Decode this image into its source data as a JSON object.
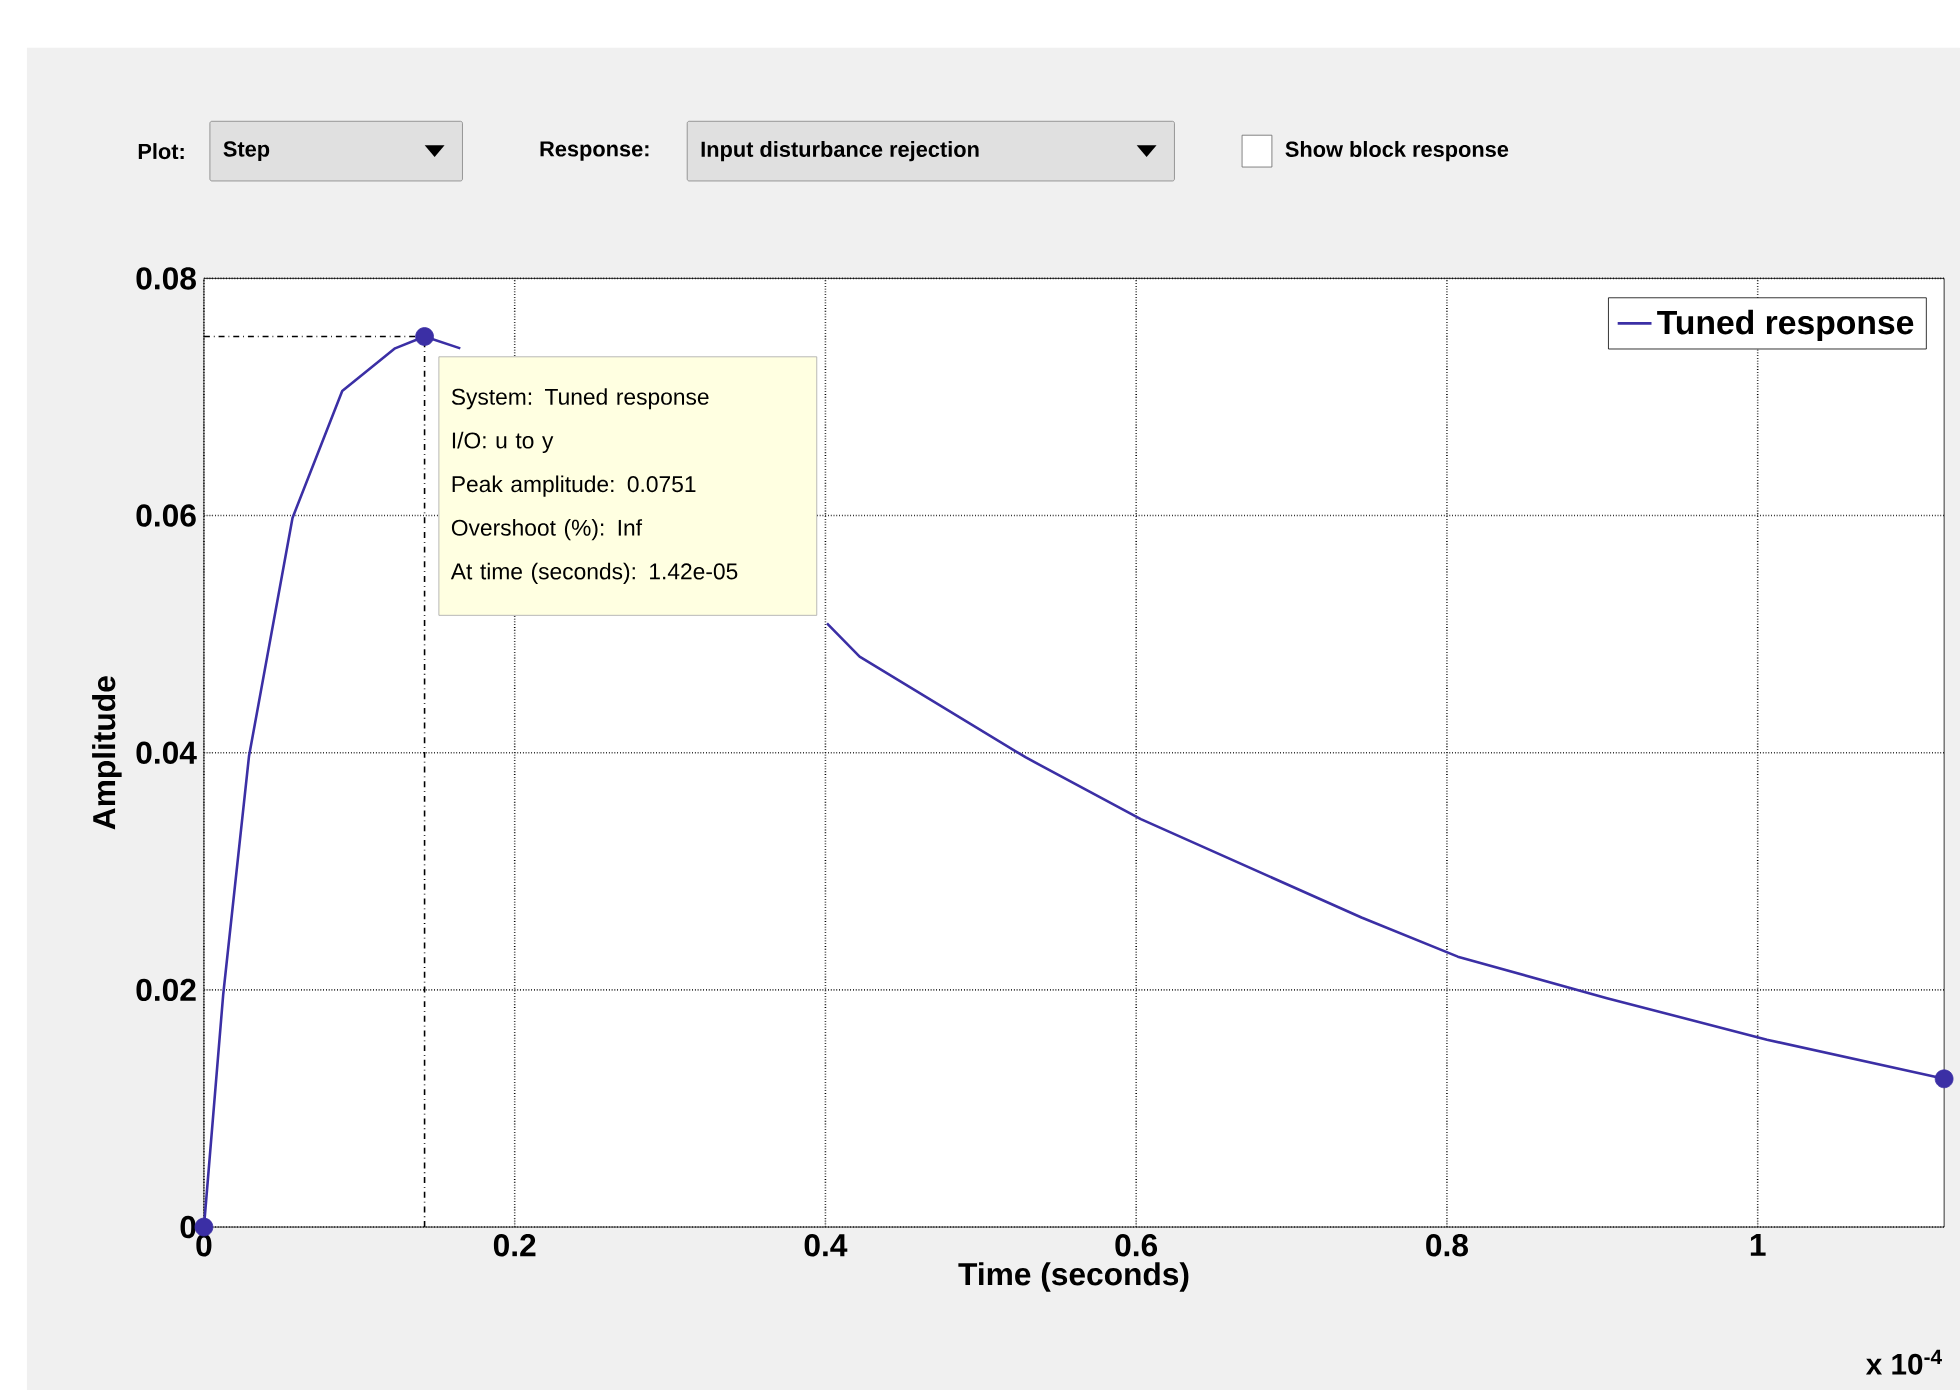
{
  "chart_data": {
    "type": "line",
    "xlabel": "Time (seconds)",
    "ylabel": "Amplitude",
    "x": [
      0,
      0.0124,
      0.029,
      0.057,
      0.089,
      0.123,
      0.142,
      0.165,
      0.28,
      0.387,
      0.401,
      0.422,
      0.529,
      0.603,
      0.745,
      0.807,
      0.903,
      1.006,
      1.12
    ],
    "series": [
      {
        "name": "Tuned response",
        "color": "#3b2fa5",
        "values": [
          0,
          0.0196,
          0.0397,
          0.0598,
          0.0705,
          0.0741,
          0.0751,
          0.0741,
          null,
          null,
          0.0509,
          0.0481,
          0.0396,
          0.0344,
          0.0261,
          0.0228,
          0.0193,
          0.0158,
          0.0125
        ]
      },
      {
        "type": "scatter",
        "color": "#3b2fa5",
        "marker": "circle",
        "x": [
          0,
          0.142,
          1.12
        ],
        "values": [
          0,
          0.0751,
          0.0125
        ]
      }
    ],
    "xlim": [
      0,
      1.12
    ],
    "ylim": [
      0,
      0.08
    ],
    "xticks": [
      0,
      0.2,
      0.4,
      0.6,
      0.8,
      1
    ],
    "yticks": [
      0,
      0.02,
      0.04,
      0.06,
      0.08
    ],
    "grid": true,
    "legend": "top right",
    "marker": "none",
    "line_style": "solid",
    "ref_lines": [
      {
        "axis": "x",
        "value": 0.142,
        "line_style": "dashed"
      },
      {
        "axis": "y",
        "value": 0.0751,
        "line_style": "dashed"
      }
    ],
    "annotations": [
      "Plot:",
      "Step",
      "Response:",
      "Input disturbance rejection",
      "Show block response",
      "x 10$^{-4}$",
      {
        "text": "System: Tuned response",
        "x": 0.142,
        "y": 0.0751
      },
      "I/O: u to y",
      "Peak amplitude: 0.0751",
      "Overshoot (%): Inf",
      "At time (seconds): 1.42e-05"
    ]
  }
}
